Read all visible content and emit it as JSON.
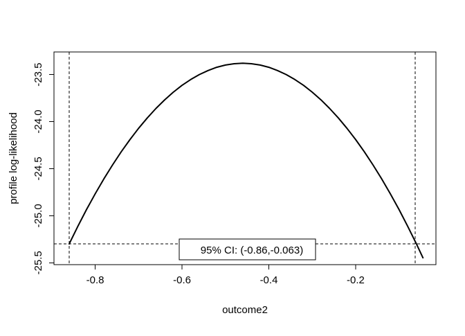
{
  "figure": {
    "background": "#ffffff",
    "foreground": "#000000"
  },
  "chart_data": {
    "type": "line",
    "title": "",
    "xlabel": "outcome2",
    "ylabel": "profile log-likelihood",
    "xlim": [
      -0.895,
      -0.015
    ],
    "ylim": [
      -25.52,
      -23.26
    ],
    "grid": false,
    "legend_position": "bottom-center-inside",
    "x_ticks": [
      -0.8,
      -0.6,
      -0.4,
      -0.2
    ],
    "x_tick_labels": [
      "-0.8",
      "-0.6",
      "-0.4",
      "-0.2"
    ],
    "y_ticks": [
      -23.5,
      -24.0,
      -24.5,
      -25.0,
      -25.5
    ],
    "y_tick_labels": [
      "-23.5",
      "-24.0",
      "-24.5",
      "-25.0",
      "-25.5"
    ],
    "series": [
      {
        "name": "profile log-likelihood",
        "color": "#000000",
        "line_width": 2,
        "x": [
          -0.86,
          -0.84,
          -0.82,
          -0.8,
          -0.78,
          -0.76,
          -0.74,
          -0.72,
          -0.7,
          -0.68,
          -0.66,
          -0.64,
          -0.62,
          -0.6,
          -0.58,
          -0.56,
          -0.54,
          -0.52,
          -0.5,
          -0.48,
          -0.46,
          -0.44,
          -0.42,
          -0.4,
          -0.38,
          -0.36,
          -0.34,
          -0.32,
          -0.3,
          -0.28,
          -0.26,
          -0.24,
          -0.22,
          -0.2,
          -0.18,
          -0.16,
          -0.14,
          -0.12,
          -0.1,
          -0.08,
          -0.06,
          -0.045
        ],
        "y": [
          -25.3,
          -25.113,
          -24.935,
          -24.767,
          -24.609,
          -24.46,
          -24.321,
          -24.191,
          -24.071,
          -23.961,
          -23.86,
          -23.769,
          -23.687,
          -23.615,
          -23.553,
          -23.5,
          -23.457,
          -23.423,
          -23.399,
          -23.385,
          -23.38,
          -23.385,
          -23.399,
          -23.423,
          -23.457,
          -23.5,
          -23.553,
          -23.615,
          -23.687,
          -23.769,
          -23.86,
          -23.961,
          -24.071,
          -24.191,
          -24.321,
          -24.46,
          -24.609,
          -24.767,
          -24.935,
          -25.113,
          -25.3,
          -25.447
        ]
      }
    ],
    "reference_lines": {
      "style": "dashed",
      "color": "#000000",
      "vertical_x": [
        -0.86,
        -0.063
      ],
      "horizontal_y": [
        -25.3
      ]
    },
    "annotation": {
      "label": "95% CI: (-0.86,-0.063)",
      "boxed": true,
      "box_fill": "#ffffff",
      "box_border": "#000000"
    },
    "ci": {
      "level": "95%",
      "lower": -0.86,
      "upper": -0.063
    },
    "peak": {
      "x": -0.46,
      "y": -23.38
    }
  }
}
